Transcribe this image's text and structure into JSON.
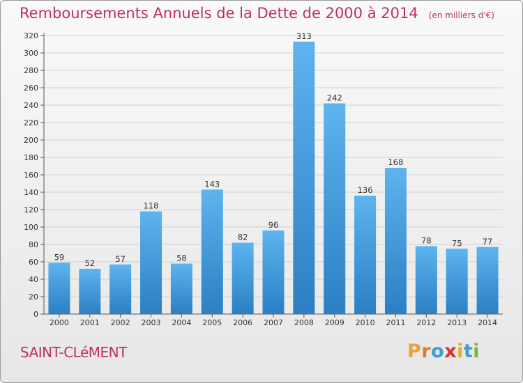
{
  "header": {
    "title": "Remboursements Annuels de la Dette de 2000 à 2014",
    "units": "(en milliers d'€)"
  },
  "footer": {
    "commune": "SAINT-CLéMENT",
    "logo_letters": [
      "P",
      "r",
      "o",
      "x",
      "i",
      "t",
      "i"
    ],
    "logo_colors": [
      "#e8a33a",
      "#e07b2e",
      "#3a9fd8",
      "#d8342a",
      "#e0b020",
      "#3a9fd8",
      "#7ab83a"
    ]
  },
  "colors": {
    "title": "#c0305a",
    "bar_top": "#5db4ee",
    "bar_bottom": "#2b7fc4",
    "axis_text": "#333333",
    "grid": "#d0d0d0"
  },
  "chart_data": {
    "type": "bar",
    "title": "Remboursements Annuels de la Dette de 2000 à 2014",
    "subtitle": "(en milliers d'€)",
    "categories": [
      "2000",
      "2001",
      "2002",
      "2003",
      "2004",
      "2005",
      "2006",
      "2007",
      "2008",
      "2009",
      "2010",
      "2011",
      "2012",
      "2013",
      "2014"
    ],
    "values": [
      59,
      52,
      57,
      118,
      58,
      143,
      82,
      96,
      313,
      242,
      136,
      168,
      78,
      75,
      77
    ],
    "ylim": [
      0,
      320
    ],
    "yticks": [
      0,
      20,
      40,
      60,
      80,
      100,
      120,
      140,
      160,
      180,
      200,
      220,
      240,
      260,
      280,
      300,
      320
    ],
    "grid": true,
    "data_labels": true
  }
}
